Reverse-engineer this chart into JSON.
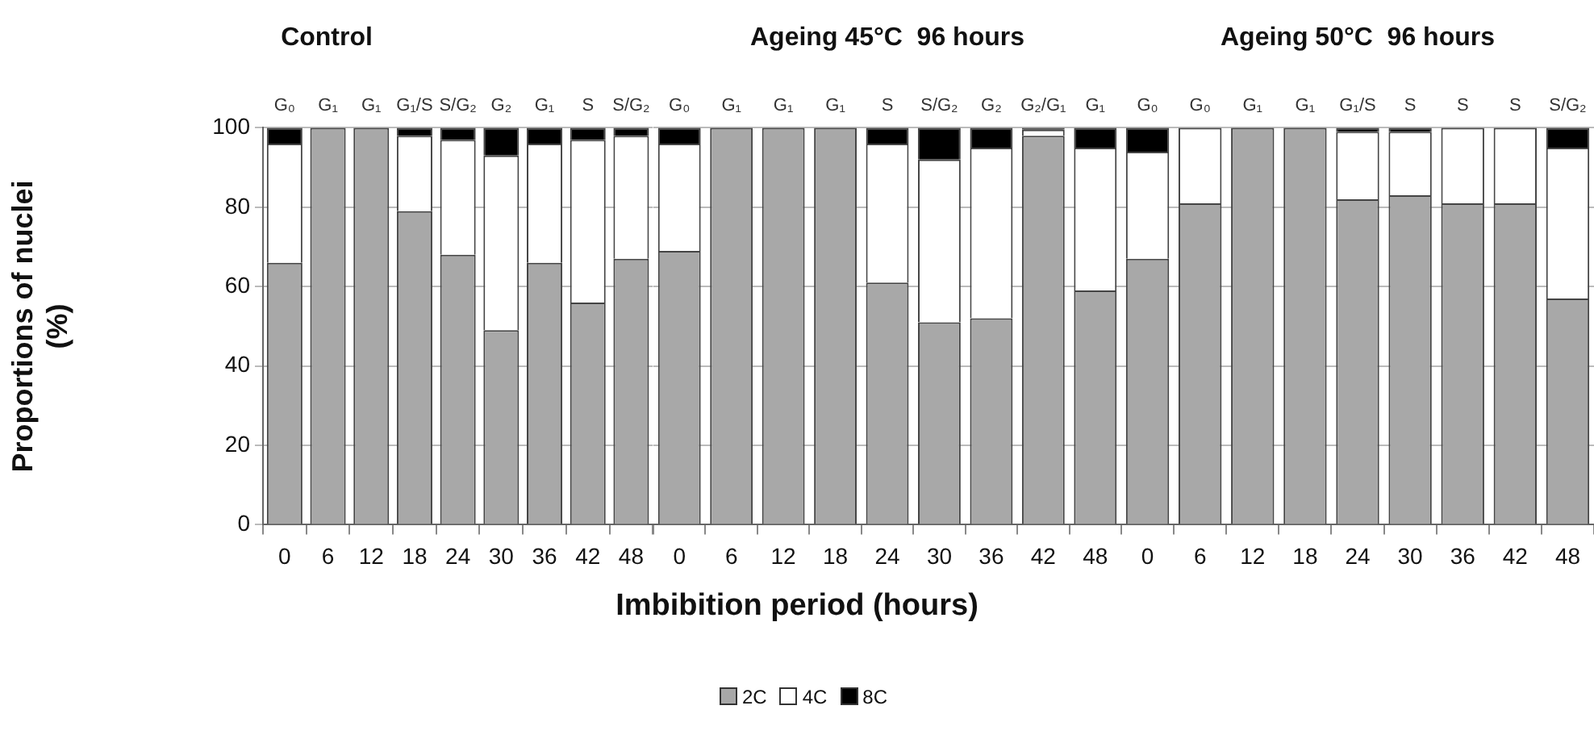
{
  "chart_data": [
    {
      "type": "bar",
      "title": "Control",
      "ylabel": "Proportions of nuclei (%)",
      "stacked": true,
      "grid": "y",
      "ylim": [
        0,
        100
      ],
      "yticks": [
        0,
        20,
        40,
        60,
        80,
        100
      ],
      "categories": [
        "0",
        "6",
        "12",
        "18",
        "24",
        "30",
        "36",
        "42",
        "48"
      ],
      "series": [
        {
          "color": "#a8a8a8",
          "values": [
            66,
            100,
            100,
            79,
            68,
            49,
            66,
            56,
            67
          ]
        },
        {
          "color": "#ffffff",
          "values": [
            30,
            0,
            0,
            19,
            29,
            44,
            30,
            41,
            31
          ]
        },
        {
          "color": "#000000",
          "values": [
            4,
            0,
            0,
            2,
            3,
            7,
            4,
            3,
            2
          ]
        }
      ],
      "annotations": [
        {
          "text": "G₀",
          "x": "0",
          "y": 100
        },
        {
          "text": "G₁",
          "x": "6",
          "y": 100
        },
        {
          "text": "G₁",
          "x": "12",
          "y": 100
        },
        {
          "text": "G₁/S",
          "x": "18",
          "y": 100
        },
        {
          "text": "S/G₂",
          "x": "24",
          "y": 100
        },
        {
          "text": "G₂",
          "x": "30",
          "y": 100
        },
        {
          "text": "G₁",
          "x": "36",
          "y": 100
        },
        {
          "text": "S",
          "x": "42",
          "y": 100
        },
        {
          "text": "S/G₂",
          "x": "48",
          "y": 100
        }
      ]
    },
    {
      "type": "bar",
      "title": "Ageing 45°C  96 hours",
      "xlabel": "Imbibition period (hours)",
      "stacked": true,
      "grid": "y",
      "legend": "bottom",
      "tick_labels": "x",
      "ylim": [
        0,
        100
      ],
      "yticks": [
        0,
        20,
        40,
        60,
        80,
        100
      ],
      "categories": [
        "0",
        "6",
        "12",
        "18",
        "24",
        "30",
        "36",
        "42",
        "48"
      ],
      "series": [
        {
          "name": "2C",
          "color": "#a8a8a8",
          "values": [
            69,
            100,
            100,
            100,
            61,
            51,
            52,
            98,
            59
          ]
        },
        {
          "name": "4C",
          "color": "#ffffff",
          "values": [
            27,
            0,
            0,
            0,
            35,
            41,
            43,
            1.5,
            36
          ]
        },
        {
          "name": "8C",
          "color": "#000000",
          "values": [
            4,
            0,
            0,
            0,
            4,
            8,
            5,
            0.5,
            5
          ]
        }
      ],
      "annotations": [
        {
          "text": "G₀",
          "x": "0",
          "y": 100
        },
        {
          "text": "G₁",
          "x": "6",
          "y": 100
        },
        {
          "text": "G₁",
          "x": "12",
          "y": 100
        },
        {
          "text": "G₁",
          "x": "18",
          "y": 100
        },
        {
          "text": "S",
          "x": "24",
          "y": 100
        },
        {
          "text": "S/G₂",
          "x": "30",
          "y": 100
        },
        {
          "text": "G₂",
          "x": "36",
          "y": 100
        },
        {
          "text": "G₂/G₁",
          "x": "42",
          "y": 100
        },
        {
          "text": "G₁",
          "x": "48",
          "y": 100
        }
      ]
    },
    {
      "type": "bar",
      "title": "Ageing 50°C  96 hours",
      "stacked": true,
      "grid": "y",
      "tick_labels": "x",
      "ylim": [
        0,
        100
      ],
      "yticks": [
        0,
        20,
        40,
        60,
        80,
        100
      ],
      "categories": [
        "0",
        "6",
        "12",
        "18",
        "24",
        "30",
        "36",
        "42",
        "48"
      ],
      "series": [
        {
          "color": "#a8a8a8",
          "values": [
            67,
            81,
            100,
            100,
            82,
            83,
            81,
            81,
            57
          ]
        },
        {
          "color": "#ffffff",
          "values": [
            27,
            19,
            0,
            0,
            17,
            16,
            19,
            19,
            38
          ]
        },
        {
          "color": "#000000",
          "values": [
            6,
            0,
            0,
            0,
            1,
            1,
            0,
            0,
            5
          ]
        }
      ],
      "annotations": [
        {
          "text": "G₀",
          "x": "0",
          "y": 100
        },
        {
          "text": "G₀",
          "x": "6",
          "y": 100
        },
        {
          "text": "G₁",
          "x": "12",
          "y": 100
        },
        {
          "text": "G₁",
          "x": "18",
          "y": 100
        },
        {
          "text": "G₁/S",
          "x": "24",
          "y": 100
        },
        {
          "text": "S",
          "x": "30",
          "y": 100
        },
        {
          "text": "S",
          "x": "36",
          "y": 100
        },
        {
          "text": "S",
          "x": "42",
          "y": 100
        },
        {
          "text": "S/G₂",
          "x": "48",
          "y": 100
        }
      ]
    }
  ]
}
